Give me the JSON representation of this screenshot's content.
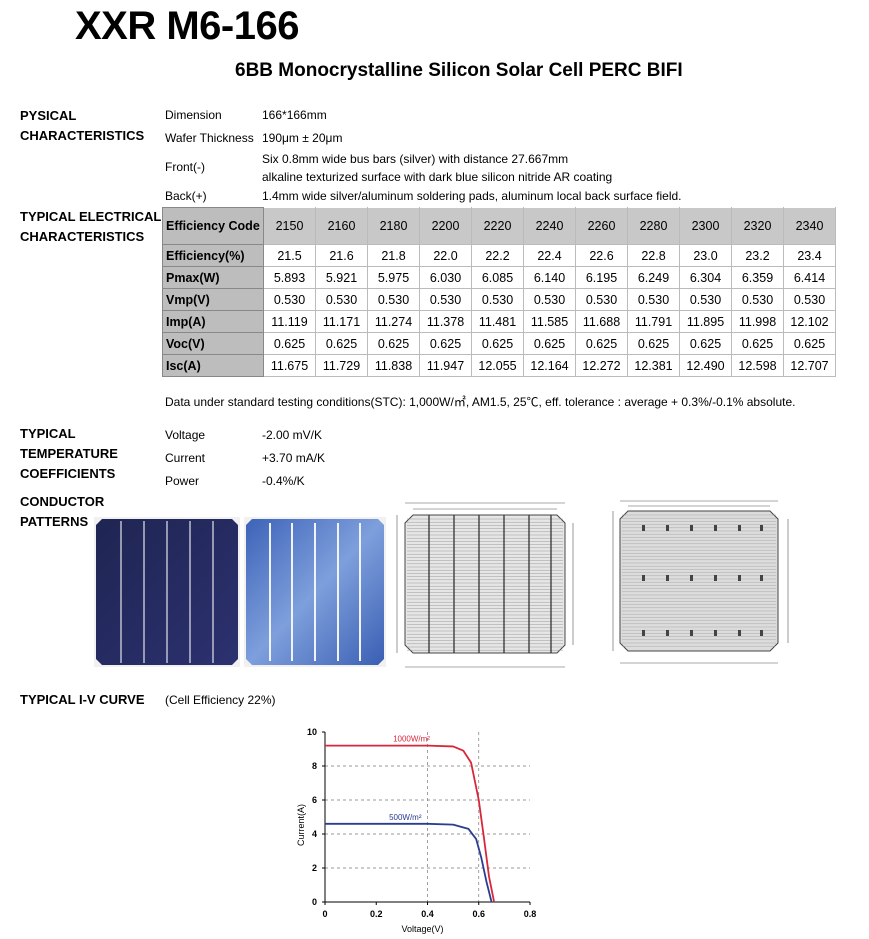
{
  "header": {
    "title": "XXR M6-166",
    "subtitle": "6BB Monocrystalline Silicon Solar Cell PERC BIFI"
  },
  "physical": {
    "section_label_1": "PYSICAL",
    "section_label_2": "CHARACTERISTICS",
    "rows": [
      {
        "label": "Dimension",
        "value": "166*166mm"
      },
      {
        "label": "Wafer Thickness",
        "value": "190μm ± 20μm"
      },
      {
        "label": "Front(-)",
        "value": "Six 0.8mm wide bus bars (silver) with distance 27.667mm",
        "value2": "alkaline texturized surface with dark blue silicon nitride AR coating"
      },
      {
        "label": "Back(+)",
        "value": "1.4mm wide silver/aluminum soldering pads, aluminum local back surface field."
      }
    ]
  },
  "electrical": {
    "section_label_1": "TYPICAL ELECTRICAL",
    "section_label_2": "CHARACTERISTICS",
    "header_label": "Efficiency Code",
    "codes": [
      "2150",
      "2160",
      "2180",
      "2200",
      "2220",
      "2240",
      "2260",
      "2280",
      "2300",
      "2320",
      "2340"
    ],
    "rows": [
      {
        "label": "Efficiency(%)",
        "values": [
          "21.5",
          "21.6",
          "21.8",
          "22.0",
          "22.2",
          "22.4",
          "22.6",
          "22.8",
          "23.0",
          "23.2",
          "23.4"
        ]
      },
      {
        "label": "Pmax(W)",
        "values": [
          "5.893",
          "5.921",
          "5.975",
          "6.030",
          "6.085",
          "6.140",
          "6.195",
          "6.249",
          "6.304",
          "6.359",
          "6.414"
        ]
      },
      {
        "label": "Vmp(V)",
        "values": [
          "0.530",
          "0.530",
          "0.530",
          "0.530",
          "0.530",
          "0.530",
          "0.530",
          "0.530",
          "0.530",
          "0.530",
          "0.530"
        ]
      },
      {
        "label": "Imp(A)",
        "values": [
          "11.119",
          "11.171",
          "11.274",
          "11.378",
          "11.481",
          "11.585",
          "11.688",
          "11.791",
          "11.895",
          "11.998",
          "12.102"
        ]
      },
      {
        "label": "Voc(V)",
        "values": [
          "0.625",
          "0.625",
          "0.625",
          "0.625",
          "0.625",
          "0.625",
          "0.625",
          "0.625",
          "0.625",
          "0.625",
          "0.625"
        ]
      },
      {
        "label": "Isc(A)",
        "values": [
          "11.675",
          "11.729",
          "11.838",
          "11.947",
          "12.055",
          "12.164",
          "12.272",
          "12.381",
          "12.490",
          "12.598",
          "12.707"
        ]
      }
    ],
    "note": "Data under standard testing conditions(STC): 1,000W/㎡, AM1.5, 25℃, eff. tolerance : average + 0.3%/-0.1% absolute."
  },
  "temperature": {
    "section_label_1": "TYPICAL",
    "section_label_2": "TEMPERATURE",
    "section_label_3": "COEFFICIENTS",
    "rows": [
      {
        "label": "Voltage",
        "value": "-2.00 mV/K"
      },
      {
        "label": "Current",
        "value": "+3.70 mA/K"
      },
      {
        "label": "Power",
        "value": "-0.4%/K"
      }
    ]
  },
  "conductor": {
    "section_label_1": "CONDUCTOR",
    "section_label_2": "PATTERNS"
  },
  "iv": {
    "section_label": "TYPICAL I-V CURVE",
    "caption": "(Cell Efficiency 22%)"
  },
  "chart_data": {
    "type": "line",
    "title": "",
    "xlabel": "Voltage(V)",
    "ylabel": "Current(A)",
    "xlim": [
      0,
      0.8
    ],
    "ylim": [
      0,
      10
    ],
    "xticks": [
      "0",
      "0.2",
      "0.4",
      "0.6",
      "0.8"
    ],
    "yticks": [
      "0",
      "2",
      "4",
      "6",
      "8",
      "10"
    ],
    "grid": "dashed",
    "series": [
      {
        "name": "1000W/m²",
        "color": "#d8263a",
        "x": [
          0,
          0.1,
          0.2,
          0.3,
          0.4,
          0.5,
          0.54,
          0.57,
          0.6,
          0.62,
          0.64,
          0.66
        ],
        "y": [
          9.2,
          9.2,
          9.2,
          9.2,
          9.2,
          9.15,
          8.9,
          8.2,
          6.0,
          3.8,
          1.5,
          0
        ]
      },
      {
        "name": "500W/m²",
        "color": "#2a3d8f",
        "x": [
          0,
          0.1,
          0.2,
          0.3,
          0.4,
          0.5,
          0.56,
          0.59,
          0.61,
          0.63,
          0.65
        ],
        "y": [
          4.6,
          4.6,
          4.6,
          4.6,
          4.6,
          4.55,
          4.3,
          3.7,
          2.6,
          1.2,
          0
        ]
      }
    ],
    "guides_x": [
      0.4,
      0.6
    ],
    "guides_y": [
      2,
      4,
      6,
      8
    ]
  }
}
